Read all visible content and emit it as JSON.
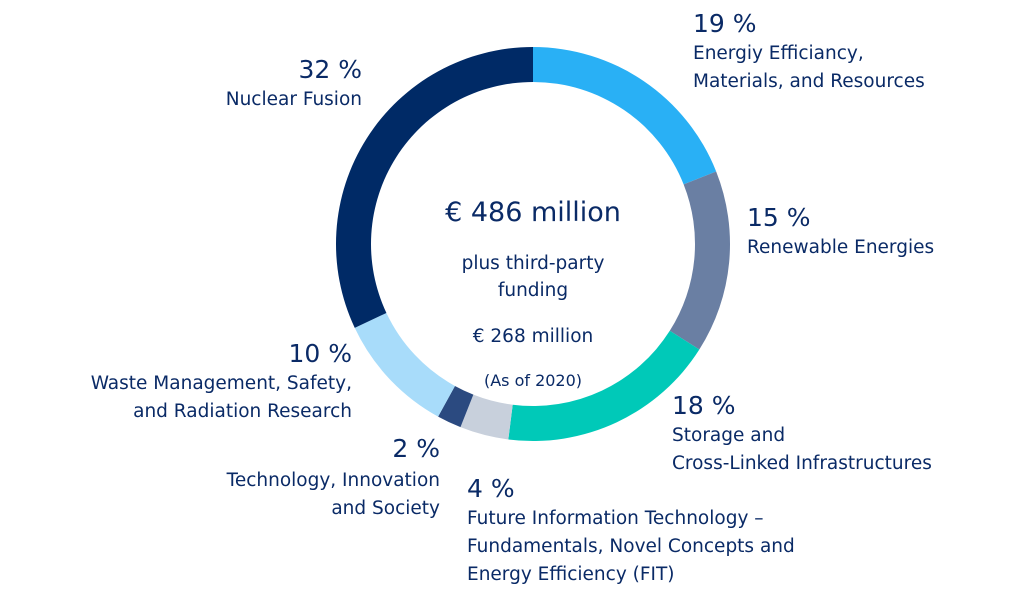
{
  "chart_data": {
    "type": "donut",
    "categories": [
      "Energiy Efficiancy,\nMaterials, and Resources",
      "Renewable Energies",
      "Storage and\nCross-Linked Infrastructures",
      "Future Information Technology –\nFundamentals, Novel Concepts and\nEnergy Efficiency (FIT)",
      "Technology, Innovation\nand Society",
      "Waste Management, Safety,\nand Radiation Research",
      "Nuclear Fusion"
    ],
    "values": [
      19,
      15,
      18,
      4,
      2,
      10,
      32
    ],
    "value_labels": [
      "19 %",
      "15 %",
      "18 %",
      "4 %",
      "2 %",
      "10 %",
      "32 %"
    ],
    "colors": [
      "#29b0f5",
      "#6a7fa3",
      "#00c9b8",
      "#c8d0dc",
      "#2b4a80",
      "#a8dcfa",
      "#002a66"
    ],
    "annotations": [
      "€ 486 million",
      "plus third-party\nfunding",
      "€ 268 million",
      "(As of 2020)"
    ]
  }
}
